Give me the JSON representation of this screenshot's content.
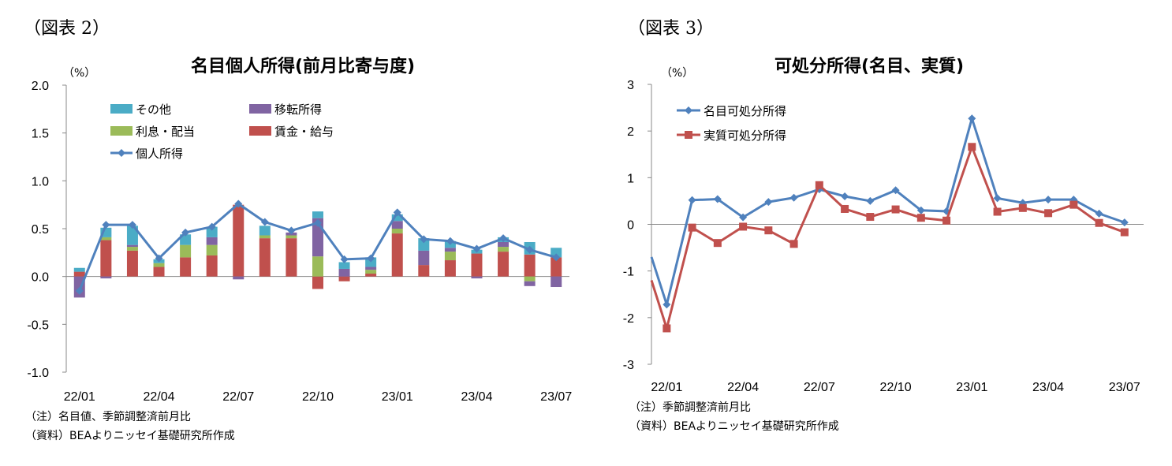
{
  "left_panel": {
    "figure_label": "（図表 2）",
    "title": "名目個人所得(前月比寄与度)",
    "unit": "（%）",
    "notes": [
      "（注）名目値、季節調整済前月比",
      "（資料）BEAよりニッセイ基礎研究所作成"
    ]
  },
  "right_panel": {
    "figure_label": "（図表 3）",
    "title": "可処分所得(名目、実質)",
    "unit": "（%）",
    "notes": [
      "（注）季節調整済前月比",
      "（資料）BEAよりニッセイ基礎研究所作成"
    ]
  },
  "chart_data": [
    {
      "type": "bar",
      "stacked": true,
      "title": "名目個人所得(前月比寄与度)",
      "ylabel": "（%）",
      "ylim": [
        -1.0,
        2.0
      ],
      "yticks": [
        2.0,
        1.5,
        1.0,
        0.5,
        0.0,
        -0.5,
        -1.0
      ],
      "ytick_labels": [
        "2.0",
        "1.5",
        "1.0",
        "0.5",
        "0.0",
        "-0.5",
        "-1.0"
      ],
      "grid": false,
      "legend_position": "top-left",
      "categories": [
        "22/01",
        "22/02",
        "22/03",
        "22/04",
        "22/05",
        "22/06",
        "22/07",
        "22/08",
        "22/09",
        "22/10",
        "22/11",
        "22/12",
        "23/01",
        "23/02",
        "23/03",
        "23/04",
        "23/05",
        "23/06",
        "23/07"
      ],
      "category_tick_labels": [
        "22/01",
        "",
        "",
        "22/04",
        "",
        "",
        "22/07",
        "",
        "",
        "22/10",
        "",
        "",
        "23/01",
        "",
        "",
        "23/04",
        "",
        "",
        "23/07"
      ],
      "series": [
        {
          "name": "賃金・給与",
          "kind": "bar",
          "color": "#C0504D",
          "values": [
            0.05,
            0.38,
            0.27,
            0.1,
            0.2,
            0.22,
            0.75,
            0.4,
            0.4,
            -0.13,
            -0.05,
            0.03,
            0.45,
            0.12,
            0.17,
            0.24,
            0.26,
            0.23,
            0.2
          ]
        },
        {
          "name": "利息・配当",
          "kind": "bar",
          "color": "#9BBB59",
          "values": [
            0.0,
            0.03,
            0.04,
            0.04,
            0.13,
            0.11,
            0.0,
            0.03,
            0.03,
            0.21,
            0.0,
            0.04,
            0.05,
            0.0,
            0.09,
            0.0,
            0.05,
            -0.05,
            0.0
          ]
        },
        {
          "name": "移転所得",
          "kind": "bar",
          "color": "#8064A2",
          "values": [
            -0.22,
            -0.02,
            0.02,
            0.0,
            0.0,
            0.08,
            -0.03,
            0.0,
            0.03,
            0.4,
            0.08,
            0.03,
            0.08,
            0.15,
            0.04,
            -0.02,
            0.05,
            -0.05,
            -0.11
          ]
        },
        {
          "name": "その他",
          "kind": "bar",
          "color": "#4BACC6",
          "values": [
            0.04,
            0.1,
            0.2,
            0.04,
            0.11,
            0.11,
            0.0,
            0.1,
            0.0,
            0.07,
            0.07,
            0.1,
            0.07,
            0.13,
            0.07,
            0.04,
            0.05,
            0.13,
            0.1
          ]
        },
        {
          "name": "個人所得",
          "kind": "line",
          "color": "#4F81BD",
          "values": [
            -0.15,
            0.54,
            0.54,
            0.19,
            0.46,
            0.52,
            0.76,
            0.57,
            0.48,
            0.56,
            0.18,
            0.19,
            0.67,
            0.39,
            0.37,
            0.29,
            0.4,
            0.28,
            0.2
          ]
        }
      ]
    },
    {
      "type": "line",
      "title": "可処分所得(名目、実質)",
      "ylabel": "（%）",
      "ylim": [
        -3,
        3
      ],
      "yticks": [
        3,
        2,
        1,
        0,
        -1,
        -2,
        -3
      ],
      "ytick_labels": [
        "3",
        "2",
        "1",
        "0",
        "-1",
        "-2",
        "-3"
      ],
      "grid": false,
      "legend_position": "top-left",
      "categories": [
        "22/01",
        "22/02",
        "22/03",
        "22/04",
        "22/05",
        "22/06",
        "22/07",
        "22/08",
        "22/09",
        "22/10",
        "22/11",
        "22/12",
        "23/01",
        "23/02",
        "23/03",
        "23/04",
        "23/05",
        "23/06",
        "23/07"
      ],
      "category_tick_labels": [
        "22/01",
        "",
        "",
        "22/04",
        "",
        "",
        "22/07",
        "",
        "",
        "22/10",
        "",
        "",
        "23/01",
        "",
        "",
        "23/04",
        "",
        "",
        "23/07"
      ],
      "series": [
        {
          "name": "名目可処分所得",
          "marker": "diamond",
          "color": "#4F81BD",
          "values": [
            -1.72,
            0.52,
            0.54,
            0.15,
            0.48,
            0.57,
            0.75,
            0.6,
            0.5,
            0.73,
            0.3,
            0.28,
            2.27,
            0.56,
            0.46,
            0.53,
            0.53,
            0.23,
            0.04
          ]
        },
        {
          "name": "実質可処分所得",
          "marker": "square",
          "color": "#C0504D",
          "values": [
            -2.23,
            -0.07,
            -0.4,
            -0.05,
            -0.13,
            -0.42,
            0.84,
            0.33,
            0.16,
            0.32,
            0.14,
            0.08,
            1.66,
            0.27,
            0.35,
            0.24,
            0.42,
            0.03,
            -0.17
          ]
        }
      ]
    }
  ]
}
